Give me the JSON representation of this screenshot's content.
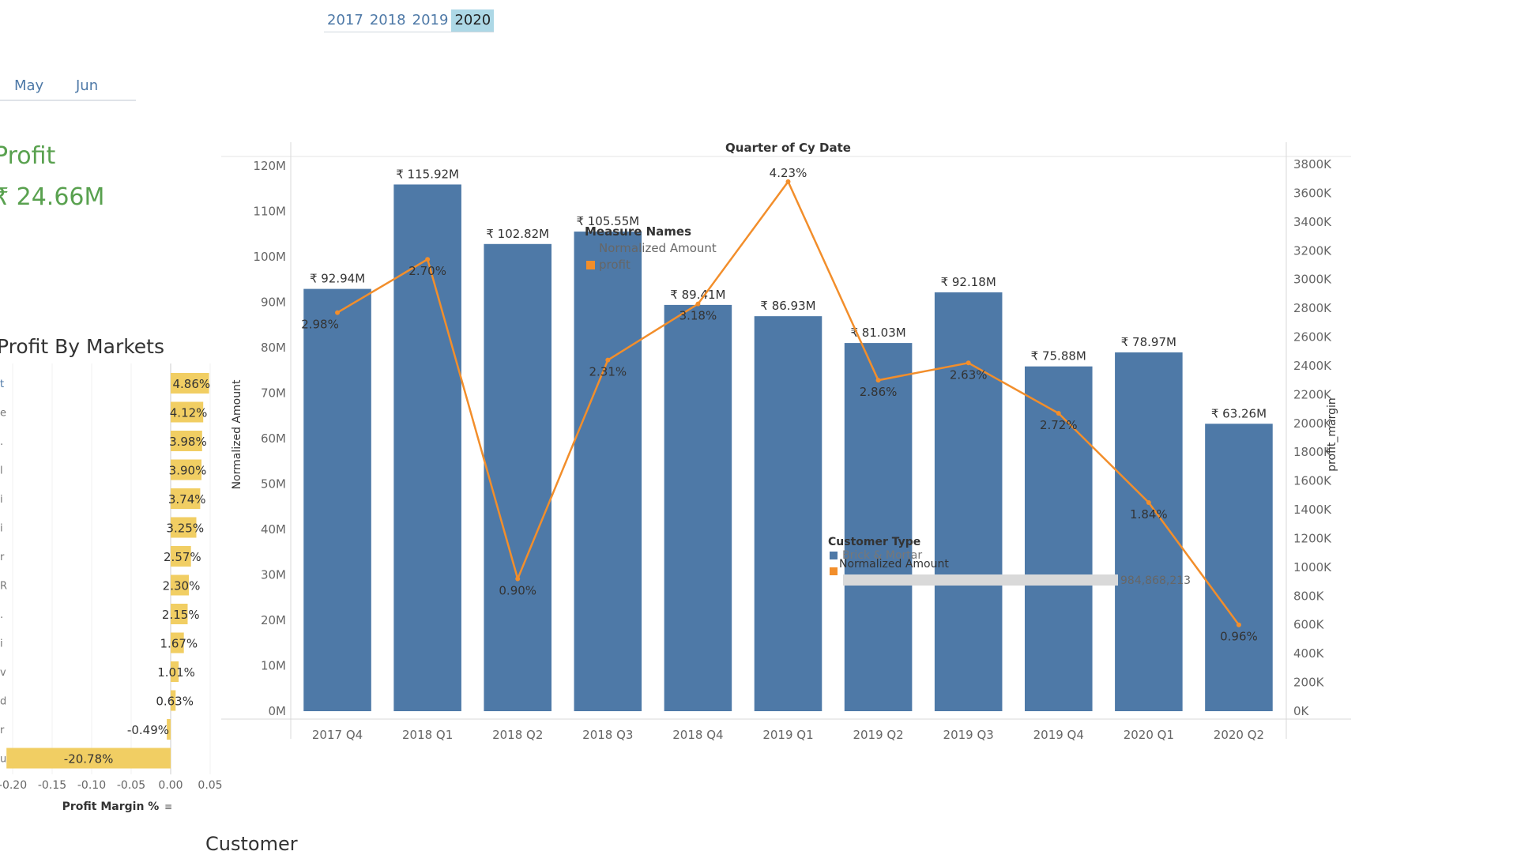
{
  "filters": {
    "years": [
      "2017",
      "2018",
      "2019",
      "2020"
    ],
    "selected_year": "2020",
    "months": [
      "May",
      "Jun"
    ]
  },
  "kpi": {
    "title": "Profit",
    "value": "₹ 24.66M"
  },
  "markets_panel": {
    "title": "Profit By Markets",
    "row_labels": [
      "t",
      "e",
      ".",
      "l",
      "i",
      "i",
      "r",
      "R",
      ".",
      "i",
      "v",
      "d",
      "r",
      "u"
    ],
    "values": [
      0.0486,
      0.0412,
      0.0398,
      0.039,
      0.0374,
      0.0325,
      0.0257,
      0.023,
      0.0215,
      0.0167,
      0.0101,
      0.0063,
      -0.0049,
      -0.2078
    ],
    "labels": [
      "4.86%",
      "4.12%",
      "3.98%",
      "3.90%",
      "3.74%",
      "3.25%",
      "2.57%",
      "2.30%",
      "2.15%",
      "1.67%",
      "1.01%",
      "0.63%",
      "-0.49%",
      "-20.78%"
    ],
    "x_ticks": [
      "-0.20",
      "-0.15",
      "-0.10",
      "-0.05",
      "0.00",
      "0.05"
    ],
    "x_axis_label": "Profit Margin %",
    "bar_color": "#f1ce63"
  },
  "customer_section": {
    "title": "Customer"
  },
  "chart_data": {
    "type": "bar",
    "title": "Quarter of Cy Date",
    "categories": [
      "2017 Q4",
      "2018 Q1",
      "2018 Q2",
      "2018 Q3",
      "2018 Q4",
      "2019 Q1",
      "2019 Q2",
      "2019 Q3",
      "2019 Q4",
      "2020 Q1",
      "2020 Q2"
    ],
    "series": [
      {
        "name": "Normalized Amount",
        "type": "bar",
        "axis": "left",
        "values": [
          92.94,
          115.92,
          102.82,
          105.55,
          89.41,
          86.93,
          81.03,
          92.18,
          75.88,
          78.97,
          63.26
        ],
        "labels": [
          "₹ 92.94M",
          "₹ 115.92M",
          "₹ 102.82M",
          "₹ 105.55M",
          "₹ 89.41M",
          "₹ 86.93M",
          "₹ 81.03M",
          "₹ 92.18M",
          "₹ 75.88M",
          "₹ 78.97M",
          "₹ 63.26M"
        ],
        "color": "#4e79a7"
      },
      {
        "name": "profit",
        "type": "line",
        "axis": "right",
        "values": [
          2770,
          3140,
          920,
          2440,
          2830,
          3680,
          2300,
          2420,
          2070,
          1450,
          600
        ],
        "labels": [
          "2.98%",
          "2.70%",
          "0.90%",
          "2.31%",
          "3.18%",
          "4.23%",
          "2.86%",
          "2.63%",
          "2.72%",
          "1.84%",
          "0.96%"
        ],
        "color": "#f28e2b"
      }
    ],
    "ylabel": "Normalized Amount",
    "ylim": [
      0,
      120
    ],
    "y_ticks": [
      "0M",
      "10M",
      "20M",
      "30M",
      "40M",
      "50M",
      "60M",
      "70M",
      "80M",
      "90M",
      "100M",
      "110M",
      "120M"
    ],
    "y2label": "profit_margin",
    "y2lim": [
      0,
      3800
    ],
    "y2_ticks": [
      "0K",
      "200K",
      "400K",
      "600K",
      "800K",
      "1000K",
      "1200K",
      "1400K",
      "1600K",
      "1800K",
      "2000K",
      "2200K",
      "2400K",
      "2600K",
      "2800K",
      "3000K",
      "3200K",
      "3400K",
      "3600K",
      "3800K"
    ],
    "legend": {
      "title": "Measure Names",
      "items": [
        "Normalized Amount",
        "profit"
      ]
    },
    "tooltip": {
      "title": "Customer Type",
      "row1": "Brick & Mortar",
      "row2_label": "Normalized Amount",
      "row2_value": "984,868,213"
    }
  }
}
